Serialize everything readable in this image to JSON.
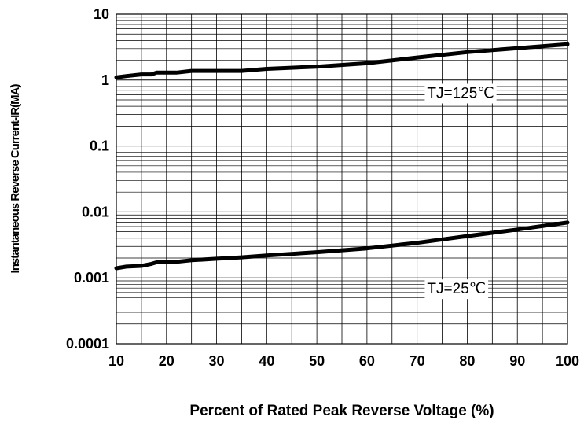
{
  "chart_data": {
    "type": "line",
    "xlabel": "Percent of Rated Peak Reverse Voltage (%)",
    "ylabel": "Instantaneous Reverse Current-IR(MA)",
    "xlim": [
      10,
      100
    ],
    "ylim": [
      0.0001,
      10
    ],
    "y_scale": "log",
    "grid": true,
    "x_ticks": [
      "10",
      "20",
      "30",
      "40",
      "50",
      "60",
      "70",
      "80",
      "90",
      "100"
    ],
    "y_ticks": [
      "10",
      "1",
      "0.1",
      "0.01",
      "0.001",
      "0.0001"
    ],
    "series": [
      {
        "x": [
          10,
          12,
          15,
          17,
          18,
          20,
          22,
          25,
          30,
          35,
          40,
          50,
          60,
          70,
          80,
          90,
          100
        ],
        "y": [
          1.1,
          1.15,
          1.22,
          1.22,
          1.3,
          1.3,
          1.3,
          1.38,
          1.38,
          1.38,
          1.48,
          1.6,
          1.8,
          2.2,
          2.65,
          3.05,
          3.5
        ]
      },
      {
        "x": [
          10,
          12,
          15,
          17,
          18,
          20,
          22,
          25,
          30,
          35,
          40,
          50,
          60,
          70,
          80,
          90,
          100
        ],
        "y": [
          0.0014,
          0.00148,
          0.00152,
          0.00163,
          0.00172,
          0.00172,
          0.00175,
          0.00185,
          0.00195,
          0.00205,
          0.00218,
          0.00245,
          0.0028,
          0.0034,
          0.0043,
          0.0054,
          0.0069
        ]
      }
    ],
    "annotations": [
      {
        "text": "TJ=125℃",
        "x": 72,
        "y": 0.65
      },
      {
        "text": "TJ=25℃",
        "x": 72,
        "y": 0.0007
      }
    ]
  }
}
